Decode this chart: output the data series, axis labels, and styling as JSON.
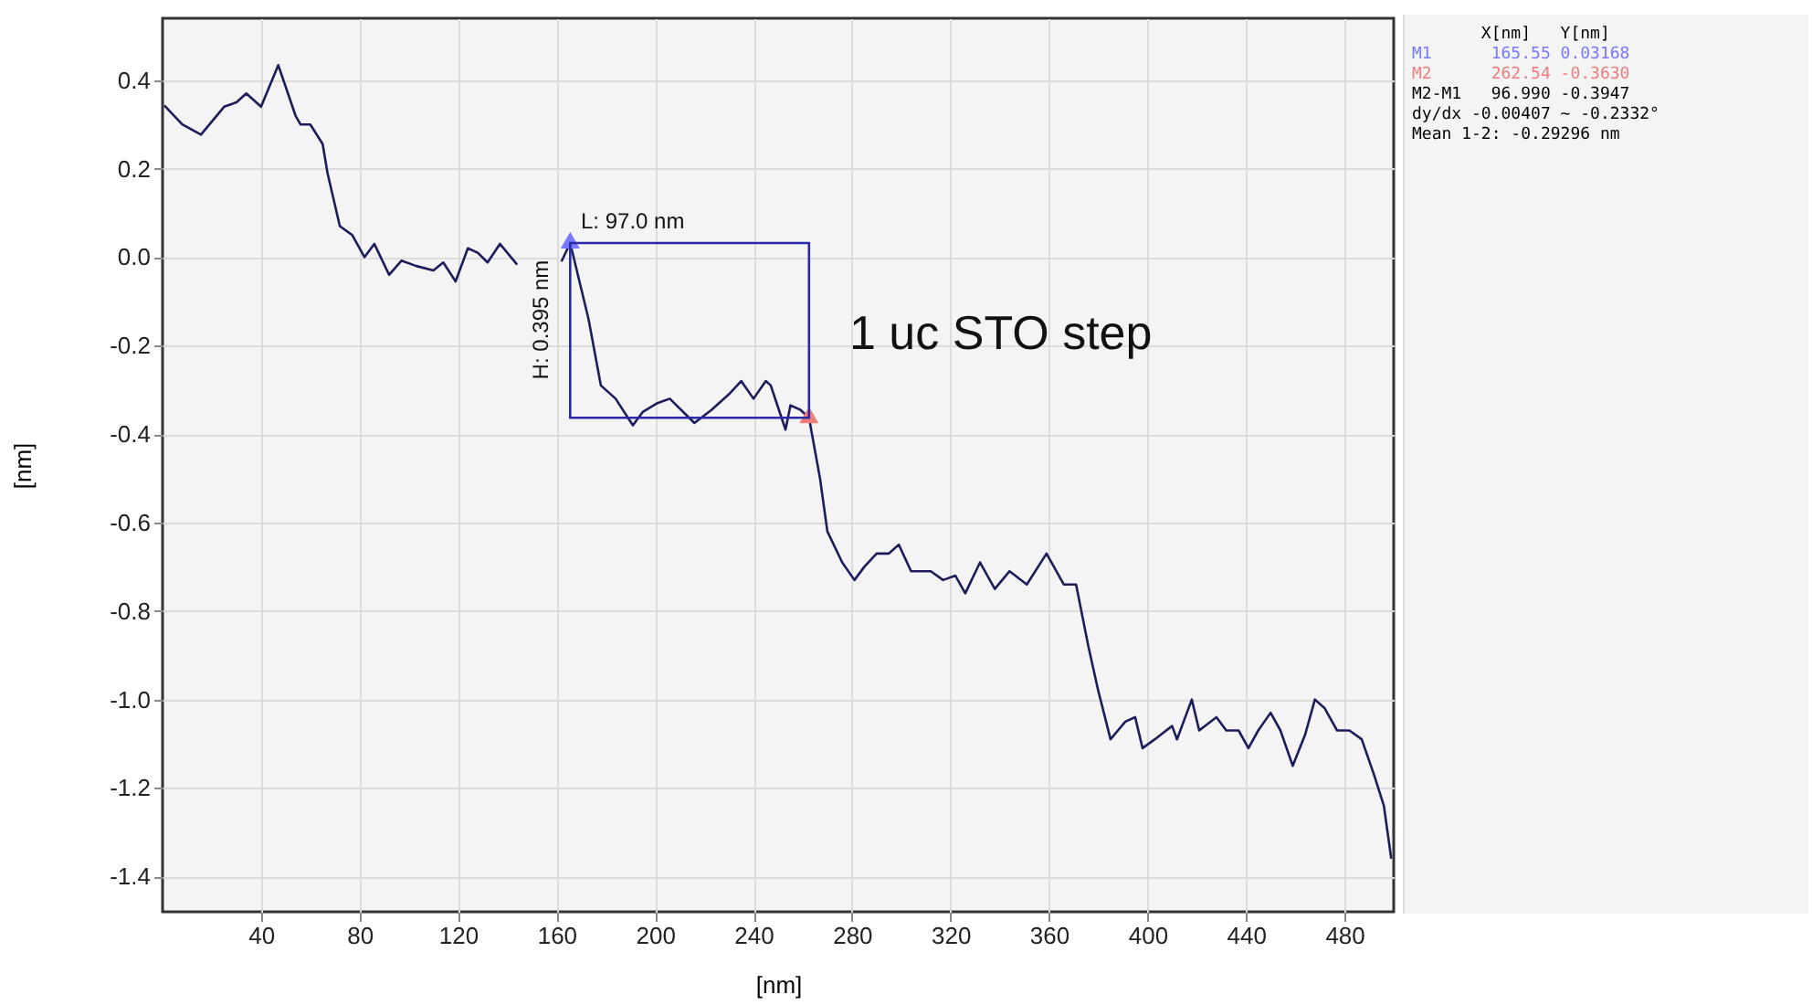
{
  "chart_data": {
    "type": "line",
    "xlabel": "[nm]",
    "ylabel": "[nm]",
    "xlim": [
      0,
      500
    ],
    "ylim": [
      -1.48,
      0.54
    ],
    "xticks": [
      40,
      80,
      120,
      160,
      200,
      240,
      280,
      320,
      360,
      400,
      440,
      480
    ],
    "yticks": [
      0.4,
      0.2,
      {
        "value": 0,
        "label": "0.0"
      },
      -0.2,
      -0.4,
      -0.6,
      -0.8,
      {
        "value": -1,
        "label": "-1.0"
      },
      -1.2,
      -1.4
    ],
    "grid": true,
    "series": [
      {
        "color": "#1c1c5c",
        "x": [
          0.7,
          8,
          15.6,
          25,
          30,
          34,
          40,
          47,
          54,
          56,
          60,
          65,
          67,
          72,
          77,
          82,
          86,
          92,
          97,
          103,
          110,
          114,
          119,
          124,
          128,
          132,
          137,
          144,
          153,
          162,
          165.55,
          173,
          178,
          184,
          191,
          195,
          201,
          206,
          216,
          223,
          230,
          235,
          240,
          245,
          247,
          253,
          255,
          259,
          262.54,
          267,
          270,
          276,
          281,
          285,
          290,
          295,
          299,
          304,
          312,
          317,
          322,
          326,
          332,
          338,
          344,
          351,
          359,
          366,
          371,
          376,
          380,
          385,
          388,
          391,
          395,
          398,
          403,
          410,
          412,
          418,
          421,
          428,
          432,
          437,
          441,
          445,
          450,
          454,
          459,
          464,
          468,
          472,
          477,
          482,
          487,
          492,
          496,
          499
        ],
        "values": [
          0.343,
          0.3,
          0.277,
          0.34,
          0.35,
          0.37,
          0.34,
          0.434,
          0.32,
          0.3,
          0.3,
          0.256,
          0.19,
          0.07,
          0.05,
          0,
          0.03,
          -0.04,
          -0.008,
          -0.02,
          -0.03,
          -0.012,
          -0.055,
          0.02,
          0.01,
          -0.012,
          0.03,
          -0.017,
          null,
          -0.01,
          0.032,
          -0.14,
          -0.29,
          -0.32,
          -0.38,
          -0.35,
          -0.33,
          -0.32,
          -0.375,
          -0.345,
          -0.31,
          -0.28,
          -0.32,
          -0.28,
          -0.29,
          -0.39,
          -0.335,
          -0.345,
          -0.363,
          -0.5,
          -0.62,
          -0.69,
          -0.73,
          -0.7,
          -0.67,
          -0.67,
          -0.65,
          -0.71,
          -0.71,
          -0.73,
          -0.72,
          -0.76,
          -0.69,
          -0.75,
          -0.71,
          -0.74,
          -0.67,
          -0.74,
          -0.74,
          -0.88,
          -0.98,
          -1.09,
          -1.07,
          -1.05,
          -1.04,
          -1.11,
          -1.09,
          -1.06,
          -1.09,
          -1,
          -1.07,
          -1.04,
          -1.07,
          -1.07,
          -1.11,
          -1.07,
          -1.03,
          -1.07,
          -1.15,
          -1.08,
          -1,
          -1.02,
          -1.07,
          -1.07,
          -1.09,
          -1.17,
          -1.24,
          -1.36
        ]
      },
      {
        "type": "scatter",
        "marker": "triangle",
        "color": "#7878ff",
        "x": [
          165.55
        ],
        "values": [
          0.032
        ]
      },
      {
        "type": "scatter",
        "marker": "triangle",
        "color": "#f07c7c",
        "x": [
          262.54
        ],
        "values": [
          -0.363
        ]
      }
    ],
    "annotations": [
      "L:  97.0 nm",
      "H: 0.395 nm",
      "1 uc STO step",
      "       X[nm]   Y[nm]",
      "M1      165.55 0.03168",
      "M2      262.54 -0.3630",
      "M2-M1   96.990 -0.3947",
      "dy/dx -0.00407 ~ -0.2332°",
      "Mean 1-2: -0.29296 nm"
    ]
  }
}
